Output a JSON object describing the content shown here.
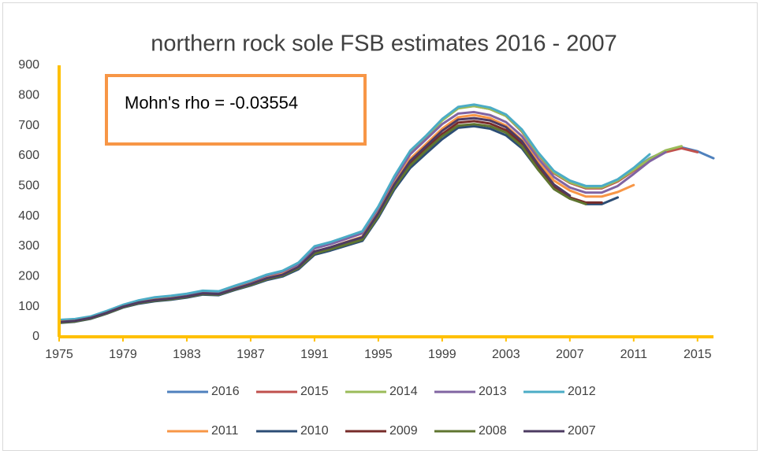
{
  "chart_data": {
    "type": "line",
    "title": "northern rock sole FSB estimates 2016 - 2007",
    "annotation": "Mohn's rho = -0.03554",
    "x": [
      1975,
      1976,
      1977,
      1978,
      1979,
      1980,
      1981,
      1982,
      1983,
      1984,
      1985,
      1986,
      1987,
      1988,
      1989,
      1990,
      1991,
      1992,
      1993,
      1994,
      1995,
      1996,
      1997,
      1998,
      1999,
      2000,
      2001,
      2002,
      2003,
      2004,
      2005,
      2006,
      2007,
      2008,
      2009,
      2010,
      2011,
      2012,
      2013,
      2014,
      2015,
      2016
    ],
    "xlim": [
      1975,
      2016
    ],
    "xticks": [
      1975,
      1979,
      1983,
      1987,
      1991,
      1995,
      1999,
      2003,
      2007,
      2011,
      2015
    ],
    "ylim": [
      0,
      900
    ],
    "yticks": [
      0,
      100,
      200,
      300,
      400,
      500,
      600,
      700,
      800,
      900
    ],
    "axis_color": "#ffc000",
    "legend": "bottom",
    "series": [
      {
        "name": "2016",
        "color": "#4f81bd",
        "values": [
          55,
          58,
          67,
          85,
          105,
          120,
          130,
          135,
          142,
          152,
          150,
          168,
          185,
          205,
          218,
          245,
          298,
          312,
          330,
          348,
          430,
          530,
          615,
          665,
          720,
          760,
          768,
          758,
          735,
          685,
          610,
          548,
          515,
          498,
          498,
          520,
          555,
          592,
          615,
          628,
          615,
          592
        ]
      },
      {
        "name": "2015",
        "color": "#c0504d",
        "values": [
          54,
          57,
          66,
          84,
          104,
          119,
          129,
          134,
          141,
          151,
          149,
          167,
          184,
          204,
          217,
          244,
          297,
          311,
          329,
          347,
          429,
          529,
          614,
          664,
          719,
          760,
          765,
          755,
          732,
          680,
          605,
          542,
          510,
          492,
          492,
          515,
          550,
          588,
          612,
          625,
          612,
          null
        ]
      },
      {
        "name": "2014",
        "color": "#9bbb59",
        "values": [
          54,
          57,
          66,
          84,
          104,
          119,
          129,
          134,
          141,
          151,
          149,
          167,
          184,
          204,
          217,
          243,
          296,
          310,
          328,
          346,
          428,
          528,
          612,
          662,
          717,
          757,
          765,
          755,
          732,
          682,
          607,
          545,
          512,
          495,
          495,
          518,
          553,
          590,
          618,
          632,
          null,
          null
        ]
      },
      {
        "name": "2013",
        "color": "#8064a2",
        "values": [
          53,
          56,
          65,
          83,
          103,
          118,
          128,
          133,
          140,
          150,
          148,
          166,
          183,
          203,
          216,
          241,
          293,
          307,
          325,
          343,
          425,
          522,
          605,
          655,
          705,
          740,
          745,
          735,
          712,
          665,
          592,
          530,
          495,
          478,
          478,
          500,
          540,
          582,
          612,
          null,
          null,
          null
        ]
      },
      {
        "name": "2012",
        "color": "#4bacc6",
        "values": [
          56,
          59,
          68,
          86,
          106,
          121,
          131,
          136,
          143,
          153,
          151,
          169,
          186,
          206,
          219,
          246,
          300,
          314,
          332,
          350,
          432,
          532,
          617,
          667,
          722,
          762,
          770,
          760,
          737,
          687,
          612,
          550,
          518,
          500,
          500,
          522,
          560,
          605,
          null,
          null,
          null,
          null
        ]
      },
      {
        "name": "2011",
        "color": "#f79646",
        "values": [
          50,
          53,
          63,
          80,
          100,
          114,
          123,
          128,
          134,
          144,
          142,
          160,
          176,
          195,
          208,
          232,
          283,
          297,
          315,
          332,
          412,
          508,
          590,
          640,
          690,
          728,
          735,
          725,
          700,
          652,
          580,
          518,
          485,
          465,
          465,
          480,
          503,
          null,
          null,
          null,
          null,
          null
        ]
      },
      {
        "name": "2010",
        "color": "#2c4d75",
        "values": [
          46,
          50,
          60,
          77,
          97,
          110,
          118,
          123,
          130,
          140,
          138,
          155,
          170,
          188,
          200,
          224,
          272,
          286,
          302,
          318,
          395,
          488,
          560,
          608,
          655,
          693,
          698,
          690,
          668,
          625,
          555,
          495,
          462,
          440,
          440,
          462,
          null,
          null,
          null,
          null,
          null,
          null
        ]
      },
      {
        "name": "2009",
        "color": "#772c2a",
        "values": [
          48,
          52,
          62,
          79,
          99,
          113,
          121,
          126,
          133,
          143,
          141,
          158,
          174,
          193,
          205,
          230,
          280,
          294,
          311,
          327,
          405,
          500,
          575,
          625,
          672,
          710,
          715,
          707,
          685,
          640,
          565,
          500,
          462,
          445,
          445,
          null,
          null,
          null,
          null,
          null,
          null,
          null
        ]
      },
      {
        "name": "2008",
        "color": "#5f7530",
        "values": [
          47,
          51,
          61,
          78,
          98,
          112,
          120,
          125,
          132,
          142,
          140,
          157,
          172,
          191,
          203,
          228,
          276,
          290,
          306,
          322,
          400,
          495,
          568,
          618,
          665,
          700,
          705,
          698,
          677,
          632,
          555,
          490,
          458,
          440,
          null,
          null,
          null,
          null,
          null,
          null,
          null,
          null
        ]
      },
      {
        "name": "2007",
        "color": "#4d3b62",
        "values": [
          49,
          53,
          63,
          80,
          100,
          114,
          122,
          127,
          134,
          144,
          142,
          159,
          175,
          194,
          206,
          232,
          283,
          297,
          314,
          330,
          410,
          505,
          583,
          633,
          683,
          720,
          725,
          717,
          695,
          648,
          572,
          505,
          468,
          null,
          null,
          null,
          null,
          null,
          null,
          null,
          null,
          null
        ]
      }
    ]
  }
}
